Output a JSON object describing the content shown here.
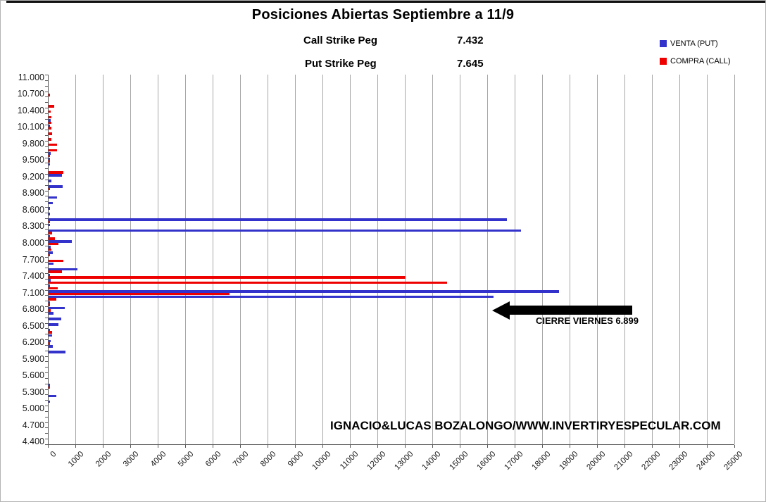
{
  "header": {
    "title": "Posiciones Abiertas Septiembre a 11/9",
    "call_strike_label": "Call Strike Peg",
    "call_strike_value": "7.432",
    "put_strike_label": "Put Strike Peg",
    "put_strike_value": "7.645"
  },
  "legend": {
    "items": [
      {
        "label": "VENTA (PUT)",
        "color": "#3333CC"
      },
      {
        "label": "COMPRA (CALL)",
        "color": "#EE0000"
      }
    ]
  },
  "annotations": {
    "arrow_label": "CIERRE VIERNES 6.899",
    "watermark": "IGNACIO&LUCAS BOZALONGO/WWW.INVERTIRYESPECULAR.COM"
  },
  "chart_data": {
    "type": "bar",
    "orientation": "horizontal",
    "title": "Posiciones Abiertas Septiembre a 11/9",
    "grid": true,
    "legend_position": "top-right",
    "x_axis": {
      "min": 0,
      "max": 25000,
      "step": 1000
    },
    "x_tick_labels": [
      "0",
      "1000",
      "2000",
      "3000",
      "4000",
      "5000",
      "6000",
      "7000",
      "8000",
      "9000",
      "10000",
      "11000",
      "12000",
      "13000",
      "14000",
      "15000",
      "16000",
      "17000",
      "18000",
      "19000",
      "20000",
      "21000",
      "22000",
      "23000",
      "24000",
      "25000"
    ],
    "y_label_every": 3,
    "categories": [
      "11.000",
      "10.900",
      "10.800",
      "10.700",
      "10.600",
      "10.500",
      "10.400",
      "10.300",
      "10.200",
      "10.100",
      "10.000",
      "9.900",
      "9.800",
      "9.700",
      "9.600",
      "9.500",
      "9.400",
      "9.300",
      "9.200",
      "9.100",
      "9.000",
      "8.900",
      "8.800",
      "8.700",
      "8.600",
      "8.500",
      "8.400",
      "8.300",
      "8.200",
      "8.100",
      "8.000",
      "7.900",
      "7.800",
      "7.700",
      "7.600",
      "7.500",
      "7.400",
      "7.300",
      "7.200",
      "7.100",
      "7.000",
      "6.900",
      "6.800",
      "6.700",
      "6.600",
      "6.500",
      "6.400",
      "6.300",
      "6.200",
      "6.100",
      "6.000",
      "5.900",
      "5.800",
      "5.700",
      "5.600",
      "5.500",
      "5.400",
      "5.300",
      "5.200",
      "5.100",
      "5.000",
      "4.900",
      "4.800",
      "4.700",
      "4.600",
      "4.500",
      "4.400"
    ],
    "series": [
      {
        "name": "VENTA (PUT)",
        "color": "#3333CC",
        "values": [
          0,
          0,
          0,
          0,
          0,
          0,
          0,
          0,
          70,
          50,
          0,
          0,
          0,
          0,
          70,
          50,
          60,
          0,
          480,
          90,
          510,
          0,
          310,
          150,
          50,
          50,
          16700,
          50,
          17200,
          40,
          840,
          70,
          150,
          0,
          180,
          1050,
          50,
          80,
          60,
          18600,
          16200,
          60,
          580,
          180,
          470,
          370,
          60,
          120,
          70,
          155,
          620,
          0,
          0,
          0,
          0,
          0,
          50,
          0,
          280,
          40,
          0,
          0,
          0,
          0,
          0,
          0,
          0
        ]
      },
      {
        "name": "COMPRA (CALL)",
        "color": "#EE0000",
        "values": [
          0,
          0,
          0,
          50,
          0,
          200,
          70,
          110,
          100,
          100,
          130,
          90,
          300,
          300,
          60,
          50,
          0,
          530,
          0,
          0,
          40,
          0,
          0,
          0,
          0,
          0,
          60,
          0,
          120,
          220,
          370,
          110,
          60,
          540,
          0,
          480,
          13000,
          14500,
          330,
          6600,
          270,
          40,
          85,
          0,
          0,
          0,
          135,
          0,
          40,
          0,
          0,
          0,
          0,
          0,
          0,
          0,
          30,
          0,
          0,
          0,
          0,
          0,
          0,
          0,
          0,
          0,
          0
        ]
      }
    ]
  }
}
